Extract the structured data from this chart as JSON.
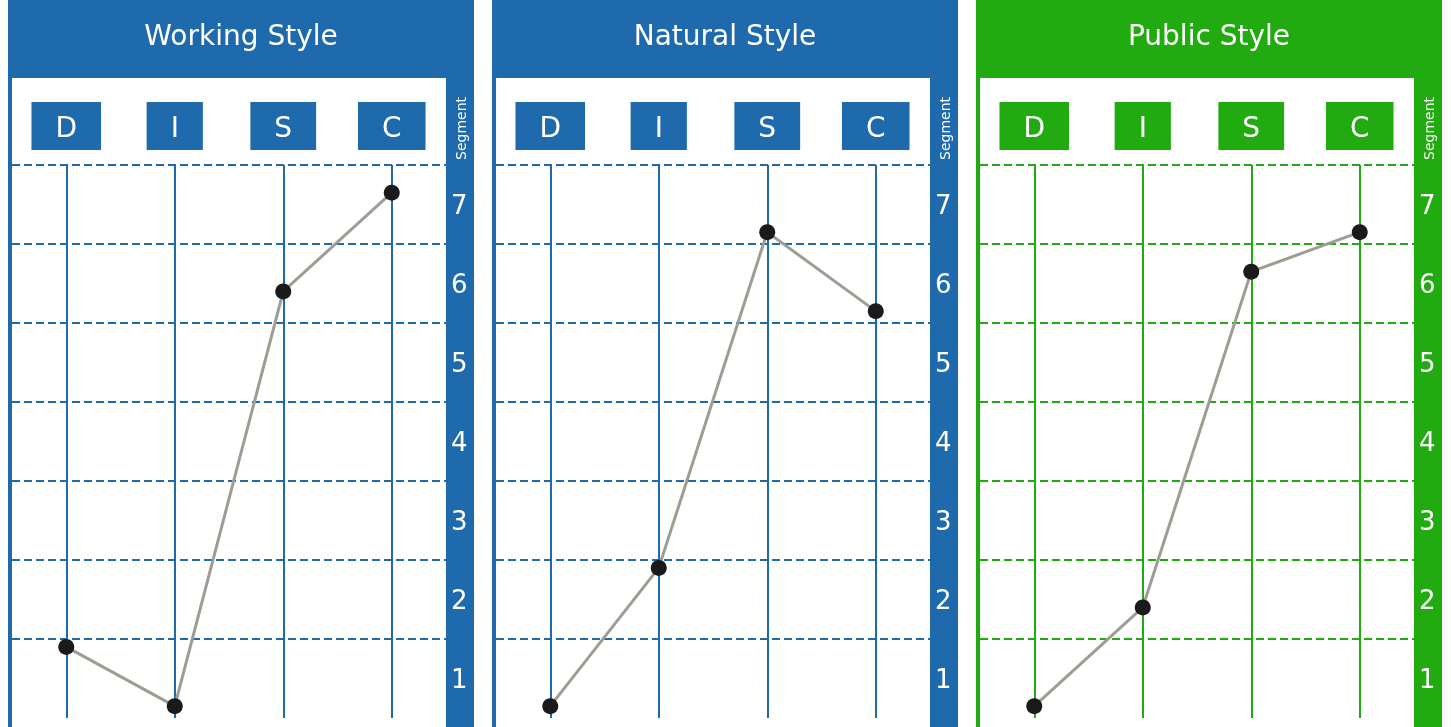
{
  "chart_data": [
    {
      "type": "line",
      "title": "Working Style",
      "ylabel": "Segment",
      "categories": [
        "D",
        "I",
        "S",
        "C"
      ],
      "series": [
        {
          "color": "#9e9d94",
          "values": [
            1.4,
            0.65,
            5.9,
            7.15
          ]
        }
      ],
      "ylim": [
        0.5,
        7.5
      ],
      "yticks": [
        1,
        2,
        3,
        4,
        5,
        6,
        7
      ],
      "grid": "x",
      "marker": "circle",
      "ref_lines": [
        {
          "axis": "y",
          "value": 1.5,
          "color": "#1f6aad",
          "line_style": "dashed"
        },
        {
          "axis": "y",
          "value": 2.5,
          "color": "#1f6aad",
          "line_style": "dashed"
        },
        {
          "axis": "y",
          "value": 3.5,
          "color": "#1f6aad",
          "line_style": "dashed"
        },
        {
          "axis": "y",
          "value": 4.5,
          "color": "#1f6aad",
          "line_style": "dashed"
        },
        {
          "axis": "y",
          "value": 5.5,
          "color": "#1f6aad",
          "line_style": "dashed"
        },
        {
          "axis": "y",
          "value": 6.5,
          "color": "#1f6aad",
          "line_style": "dashed"
        },
        {
          "axis": "y",
          "value": 7.5,
          "color": "#1f6aad",
          "line_style": "dashed"
        }
      ]
    },
    {
      "type": "line",
      "title": "Natural Style",
      "ylabel": "Segment",
      "categories": [
        "D",
        "I",
        "S",
        "C"
      ],
      "series": [
        {
          "color": "#9e9d94",
          "values": [
            0.65,
            2.4,
            6.65,
            5.65
          ]
        }
      ],
      "ylim": [
        0.5,
        7.5
      ],
      "yticks": [
        1,
        2,
        3,
        4,
        5,
        6,
        7
      ],
      "grid": "x",
      "marker": "circle",
      "ref_lines": [
        {
          "axis": "y",
          "value": 1.5,
          "color": "#1f6aad",
          "line_style": "dashed"
        },
        {
          "axis": "y",
          "value": 2.5,
          "color": "#1f6aad",
          "line_style": "dashed"
        },
        {
          "axis": "y",
          "value": 3.5,
          "color": "#1f6aad",
          "line_style": "dashed"
        },
        {
          "axis": "y",
          "value": 4.5,
          "color": "#1f6aad",
          "line_style": "dashed"
        },
        {
          "axis": "y",
          "value": 5.5,
          "color": "#1f6aad",
          "line_style": "dashed"
        },
        {
          "axis": "y",
          "value": 6.5,
          "color": "#1f6aad",
          "line_style": "dashed"
        },
        {
          "axis": "y",
          "value": 7.5,
          "color": "#1f6aad",
          "line_style": "dashed"
        }
      ]
    },
    {
      "type": "line",
      "title": "Public Style",
      "ylabel": "Segment",
      "categories": [
        "D",
        "I",
        "S",
        "C"
      ],
      "series": [
        {
          "color": "#9e9d94",
          "values": [
            0.65,
            1.9,
            6.15,
            6.65
          ]
        }
      ],
      "ylim": [
        0.5,
        7.5
      ],
      "yticks": [
        1,
        2,
        3,
        4,
        5,
        6,
        7
      ],
      "grid": "x",
      "marker": "circle",
      "ref_lines": [
        {
          "axis": "y",
          "value": 1.5,
          "color": "#22aa11",
          "line_style": "dashed"
        },
        {
          "axis": "y",
          "value": 2.5,
          "color": "#22aa11",
          "line_style": "dashed"
        },
        {
          "axis": "y",
          "value": 3.5,
          "color": "#22aa11",
          "line_style": "dashed"
        },
        {
          "axis": "y",
          "value": 4.5,
          "color": "#22aa11",
          "line_style": "dashed"
        },
        {
          "axis": "y",
          "value": 5.5,
          "color": "#22aa11",
          "line_style": "dashed"
        },
        {
          "axis": "y",
          "value": 6.5,
          "color": "#22aa11",
          "line_style": "dashed"
        },
        {
          "axis": "y",
          "value": 7.5,
          "color": "#22aa11",
          "line_style": "dashed"
        }
      ]
    }
  ]
}
